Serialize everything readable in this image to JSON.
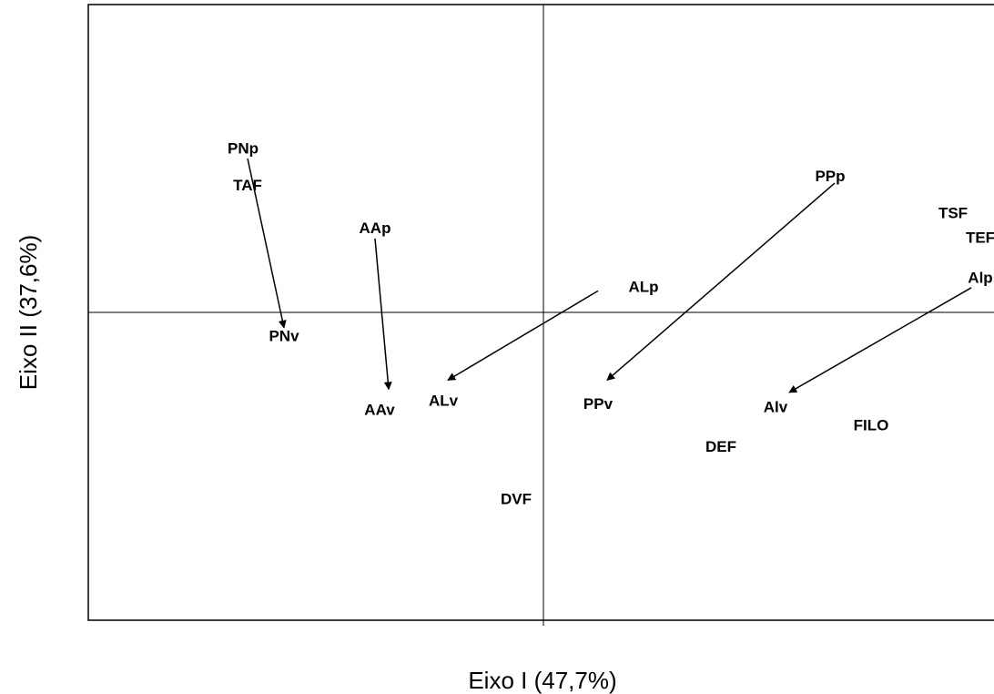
{
  "chart_data": {
    "type": "scatter",
    "title": "",
    "xlabel": "Eixo I (47,7%)",
    "ylabel": "Eixo II (37,6%)",
    "xlim": [
      -1.0,
      1.0
    ],
    "ylim": [
      -1.0,
      1.0
    ],
    "grid": false,
    "axes_through_origin": true,
    "points": [
      {
        "label": "PNp",
        "x": -0.66,
        "y": 0.53
      },
      {
        "label": "TAF",
        "x": -0.65,
        "y": 0.41
      },
      {
        "label": "AAp",
        "x": -0.37,
        "y": 0.27
      },
      {
        "label": "PNv",
        "x": -0.57,
        "y": -0.08
      },
      {
        "label": "AAv",
        "x": -0.36,
        "y": -0.32
      },
      {
        "label": "ALv",
        "x": -0.22,
        "y": -0.29
      },
      {
        "label": "ALp",
        "x": 0.22,
        "y": 0.08
      },
      {
        "label": "PPp",
        "x": 0.63,
        "y": 0.44
      },
      {
        "label": "PPv",
        "x": 0.12,
        "y": -0.3
      },
      {
        "label": "TSF",
        "x": 0.9,
        "y": 0.32
      },
      {
        "label": "TEF",
        "x": 0.96,
        "y": 0.24
      },
      {
        "label": "Alp",
        "x": 0.96,
        "y": 0.11
      },
      {
        "label": "Alv",
        "x": 0.51,
        "y": -0.31
      },
      {
        "label": "FILO",
        "x": 0.72,
        "y": -0.37
      },
      {
        "label": "DEF",
        "x": 0.39,
        "y": -0.44
      },
      {
        "label": "DVF",
        "x": -0.06,
        "y": -0.61
      }
    ],
    "arrows": [
      {
        "from": "PNp",
        "to": "PNv",
        "x1": -0.65,
        "y1": 0.5,
        "x2": -0.57,
        "y2": -0.05
      },
      {
        "from": "AAp",
        "to": "AAv",
        "x1": -0.37,
        "y1": 0.24,
        "x2": -0.34,
        "y2": -0.25
      },
      {
        "from": "ALp",
        "to": "ALv",
        "x1": 0.12,
        "y1": 0.07,
        "x2": -0.21,
        "y2": -0.22
      },
      {
        "from": "PPp",
        "to": "PPv",
        "x1": 0.64,
        "y1": 0.42,
        "x2": 0.14,
        "y2": -0.22
      },
      {
        "from": "Alp",
        "to": "Alv",
        "x1": 0.94,
        "y1": 0.08,
        "x2": 0.54,
        "y2": -0.26
      }
    ]
  }
}
